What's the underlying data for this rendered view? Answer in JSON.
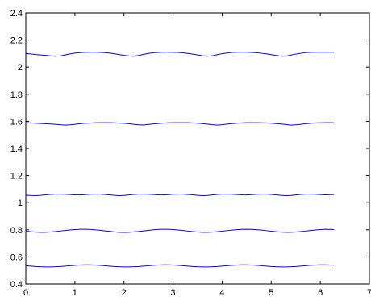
{
  "chart_data": {
    "type": "line",
    "title": "",
    "xlabel": "",
    "ylabel": "",
    "xlim": [
      0,
      7
    ],
    "ylim": [
      0.4,
      2.4
    ],
    "xticks": [
      "0",
      "1",
      "2",
      "3",
      "4",
      "5",
      "6",
      "7"
    ],
    "yticks": [
      "0.4",
      "0.6",
      "0.8",
      "1",
      "1.2",
      "1.4",
      "1.6",
      "1.8",
      "2",
      "2.2",
      "2.4"
    ],
    "grid": false,
    "legend": "none",
    "line_color": "#0000ff",
    "series": [
      {
        "x": [
          0,
          0.1,
          0.2,
          0.3,
          0.4,
          0.5,
          0.6,
          0.7,
          0.8,
          0.9,
          1.0,
          1.1,
          1.2,
          1.3,
          1.4,
          1.5,
          1.6,
          1.7,
          1.8,
          1.9,
          2.0,
          2.1,
          2.2,
          2.3,
          2.4,
          2.5,
          2.6,
          2.7,
          2.8,
          2.9,
          3.0,
          3.1,
          3.2,
          3.3,
          3.4,
          3.5,
          3.6,
          3.7,
          3.8,
          3.9,
          4.0,
          4.1,
          4.2,
          4.3,
          4.4,
          4.5,
          4.6,
          4.7,
          4.8,
          4.9,
          5.0,
          5.1,
          5.2,
          5.3,
          5.4,
          5.5,
          5.6,
          5.7,
          5.8,
          5.9,
          6.0,
          6.1,
          6.2,
          6.28
        ],
        "y": [
          2.1,
          2.097,
          2.093,
          2.09,
          2.087,
          2.083,
          2.08,
          2.082,
          2.09,
          2.097,
          2.103,
          2.107,
          2.109,
          2.11,
          2.11,
          2.109,
          2.107,
          2.104,
          2.099,
          2.093,
          2.087,
          2.082,
          2.08,
          2.086,
          2.094,
          2.101,
          2.106,
          2.108,
          2.11,
          2.11,
          2.109,
          2.108,
          2.105,
          2.101,
          2.096,
          2.09,
          2.084,
          2.08,
          2.084,
          2.092,
          2.099,
          2.104,
          2.108,
          2.11,
          2.11,
          2.11,
          2.108,
          2.106,
          2.102,
          2.098,
          2.092,
          2.086,
          2.081,
          2.081,
          2.089,
          2.096,
          2.102,
          2.107,
          2.109,
          2.11,
          2.11,
          2.11,
          2.11,
          2.11
        ]
      },
      {
        "x": [
          0,
          0.1,
          0.2,
          0.3,
          0.4,
          0.5,
          0.6,
          0.7,
          0.8,
          0.9,
          1.0,
          1.1,
          1.2,
          1.3,
          1.4,
          1.5,
          1.6,
          1.7,
          1.8,
          1.9,
          2.0,
          2.1,
          2.2,
          2.3,
          2.4,
          2.5,
          2.6,
          2.7,
          2.8,
          2.9,
          3.0,
          3.1,
          3.2,
          3.3,
          3.4,
          3.5,
          3.6,
          3.7,
          3.8,
          3.9,
          4.0,
          4.1,
          4.2,
          4.3,
          4.4,
          4.5,
          4.6,
          4.7,
          4.8,
          4.9,
          5.0,
          5.1,
          5.2,
          5.3,
          5.4,
          5.5,
          5.6,
          5.7,
          5.8,
          5.9,
          6.0,
          6.1,
          6.2,
          6.28
        ],
        "y": [
          1.59,
          1.588,
          1.586,
          1.584,
          1.582,
          1.58,
          1.578,
          1.575,
          1.572,
          1.574,
          1.578,
          1.582,
          1.585,
          1.587,
          1.589,
          1.59,
          1.59,
          1.59,
          1.589,
          1.587,
          1.585,
          1.582,
          1.578,
          1.574,
          1.573,
          1.577,
          1.581,
          1.584,
          1.587,
          1.589,
          1.59,
          1.59,
          1.59,
          1.59,
          1.588,
          1.586,
          1.583,
          1.579,
          1.575,
          1.572,
          1.575,
          1.579,
          1.583,
          1.586,
          1.588,
          1.59,
          1.59,
          1.59,
          1.589,
          1.588,
          1.586,
          1.583,
          1.58,
          1.576,
          1.572,
          1.574,
          1.578,
          1.582,
          1.585,
          1.588,
          1.589,
          1.59,
          1.59,
          1.59
        ]
      },
      {
        "x": [
          0,
          0.1,
          0.2,
          0.3,
          0.4,
          0.5,
          0.6,
          0.7,
          0.8,
          0.9,
          1.0,
          1.1,
          1.2,
          1.3,
          1.4,
          1.5,
          1.6,
          1.7,
          1.8,
          1.9,
          2.0,
          2.1,
          2.2,
          2.3,
          2.4,
          2.5,
          2.6,
          2.7,
          2.8,
          2.9,
          3.0,
          3.1,
          3.2,
          3.3,
          3.4,
          3.5,
          3.6,
          3.7,
          3.8,
          3.9,
          4.0,
          4.1,
          4.2,
          4.3,
          4.4,
          4.5,
          4.6,
          4.7,
          4.8,
          4.9,
          5.0,
          5.1,
          5.2,
          5.3,
          5.4,
          5.5,
          5.6,
          5.7,
          5.8,
          5.9,
          6.0,
          6.1,
          6.2,
          6.28
        ],
        "y": [
          1.055,
          1.053,
          1.052,
          1.054,
          1.058,
          1.061,
          1.063,
          1.063,
          1.062,
          1.06,
          1.058,
          1.057,
          1.059,
          1.062,
          1.063,
          1.063,
          1.061,
          1.058,
          1.054,
          1.052,
          1.053,
          1.057,
          1.061,
          1.063,
          1.063,
          1.062,
          1.06,
          1.058,
          1.057,
          1.059,
          1.062,
          1.063,
          1.063,
          1.061,
          1.058,
          1.054,
          1.052,
          1.053,
          1.057,
          1.061,
          1.063,
          1.063,
          1.062,
          1.06,
          1.058,
          1.057,
          1.059,
          1.062,
          1.063,
          1.063,
          1.061,
          1.058,
          1.054,
          1.052,
          1.053,
          1.057,
          1.061,
          1.063,
          1.063,
          1.062,
          1.06,
          1.058,
          1.059,
          1.06
        ]
      },
      {
        "x": [
          0,
          0.1,
          0.2,
          0.3,
          0.4,
          0.5,
          0.6,
          0.7,
          0.8,
          0.9,
          1.0,
          1.1,
          1.2,
          1.3,
          1.4,
          1.5,
          1.6,
          1.7,
          1.8,
          1.9,
          2.0,
          2.1,
          2.2,
          2.3,
          2.4,
          2.5,
          2.6,
          2.7,
          2.8,
          2.9,
          3.0,
          3.1,
          3.2,
          3.3,
          3.4,
          3.5,
          3.6,
          3.7,
          3.8,
          3.9,
          4.0,
          4.1,
          4.2,
          4.3,
          4.4,
          4.5,
          4.6,
          4.7,
          4.8,
          4.9,
          5.0,
          5.1,
          5.2,
          5.3,
          5.4,
          5.5,
          5.6,
          5.7,
          5.8,
          5.9,
          6.0,
          6.1,
          6.2,
          6.28
        ],
        "y": [
          0.79,
          0.786,
          0.783,
          0.782,
          0.782,
          0.784,
          0.787,
          0.791,
          0.795,
          0.799,
          0.802,
          0.804,
          0.804,
          0.803,
          0.8,
          0.797,
          0.793,
          0.789,
          0.785,
          0.782,
          0.781,
          0.782,
          0.785,
          0.788,
          0.792,
          0.796,
          0.8,
          0.803,
          0.804,
          0.804,
          0.802,
          0.799,
          0.795,
          0.791,
          0.787,
          0.784,
          0.782,
          0.782,
          0.783,
          0.786,
          0.79,
          0.794,
          0.798,
          0.801,
          0.803,
          0.804,
          0.803,
          0.801,
          0.798,
          0.794,
          0.79,
          0.786,
          0.783,
          0.782,
          0.782,
          0.784,
          0.787,
          0.791,
          0.795,
          0.799,
          0.802,
          0.804,
          0.803,
          0.802
        ]
      },
      {
        "x": [
          0,
          0.1,
          0.2,
          0.3,
          0.4,
          0.5,
          0.6,
          0.7,
          0.8,
          0.9,
          1.0,
          1.1,
          1.2,
          1.3,
          1.4,
          1.5,
          1.6,
          1.7,
          1.8,
          1.9,
          2.0,
          2.1,
          2.2,
          2.3,
          2.4,
          2.5,
          2.6,
          2.7,
          2.8,
          2.9,
          3.0,
          3.1,
          3.2,
          3.3,
          3.4,
          3.5,
          3.6,
          3.7,
          3.8,
          3.9,
          4.0,
          4.1,
          4.2,
          4.3,
          4.4,
          4.5,
          4.6,
          4.7,
          4.8,
          4.9,
          5.0,
          5.1,
          5.2,
          5.3,
          5.4,
          5.5,
          5.6,
          5.7,
          5.8,
          5.9,
          6.0,
          6.1,
          6.2,
          6.28
        ],
        "y": [
          0.535,
          0.532,
          0.529,
          0.527,
          0.526,
          0.526,
          0.527,
          0.529,
          0.532,
          0.535,
          0.538,
          0.54,
          0.541,
          0.541,
          0.54,
          0.538,
          0.535,
          0.532,
          0.529,
          0.527,
          0.526,
          0.526,
          0.527,
          0.529,
          0.532,
          0.535,
          0.538,
          0.54,
          0.541,
          0.541,
          0.54,
          0.538,
          0.535,
          0.532,
          0.529,
          0.527,
          0.526,
          0.526,
          0.527,
          0.529,
          0.532,
          0.535,
          0.538,
          0.54,
          0.541,
          0.541,
          0.54,
          0.538,
          0.535,
          0.532,
          0.529,
          0.527,
          0.526,
          0.526,
          0.527,
          0.529,
          0.532,
          0.535,
          0.538,
          0.54,
          0.541,
          0.541,
          0.54,
          0.539
        ]
      }
    ]
  }
}
